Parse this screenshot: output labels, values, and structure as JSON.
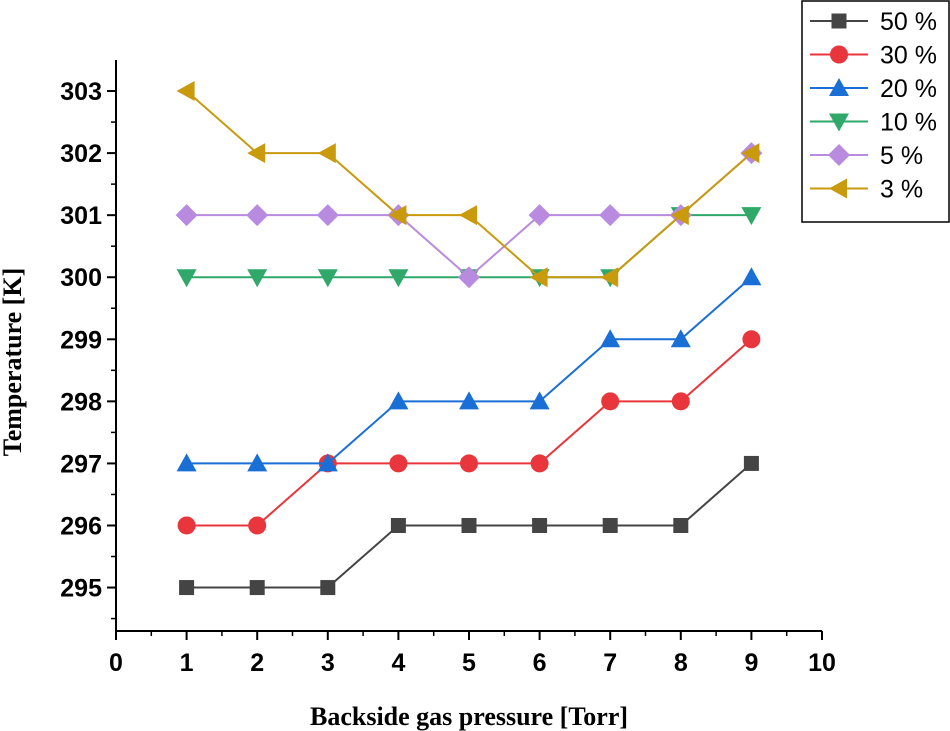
{
  "chart_data": {
    "type": "line",
    "xlabel": "Backside gas pressure [Torr]",
    "ylabel": "Temperature [K]",
    "xlim": [
      0,
      10
    ],
    "ylim": [
      294.3,
      303.5
    ],
    "x_ticks": [
      0,
      1,
      2,
      3,
      4,
      5,
      6,
      7,
      8,
      9,
      10
    ],
    "y_ticks": [
      295,
      296,
      297,
      298,
      299,
      300,
      301,
      302,
      303
    ],
    "grid": false,
    "legend_position": "top-right",
    "x": [
      1,
      2,
      3,
      4,
      5,
      6,
      7,
      8,
      9
    ],
    "series": [
      {
        "name": "50 %",
        "color": "#444444",
        "marker": "square",
        "values": [
          295,
          295,
          295,
          296,
          296,
          296,
          296,
          296,
          297
        ]
      },
      {
        "name": "30 %",
        "color": "#e8363c",
        "marker": "circle",
        "values": [
          296,
          296,
          297,
          297,
          297,
          297,
          298,
          298,
          299
        ]
      },
      {
        "name": "20 %",
        "color": "#1a6fd6",
        "marker": "triangle-up",
        "values": [
          297,
          297,
          297,
          298,
          298,
          298,
          299,
          299,
          300
        ]
      },
      {
        "name": "10 %",
        "color": "#2fa86a",
        "marker": "triangle-down",
        "values": [
          300,
          300,
          300,
          300,
          300,
          300,
          300,
          301,
          301
        ]
      },
      {
        "name": "5 %",
        "color": "#b88ae0",
        "marker": "diamond",
        "values": [
          301,
          301,
          301,
          301,
          300,
          301,
          301,
          301,
          302
        ]
      },
      {
        "name": "3 %",
        "color": "#c89a0c",
        "marker": "triangle-left",
        "values": [
          303,
          302,
          302,
          301,
          301,
          300,
          300,
          301,
          302
        ]
      }
    ]
  }
}
